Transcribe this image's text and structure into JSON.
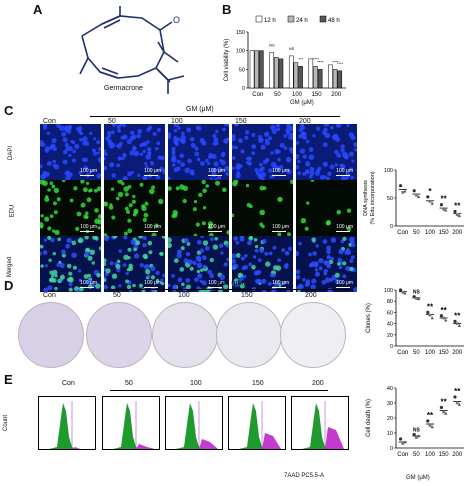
{
  "panels": {
    "A": "A",
    "B": "B",
    "C": "C",
    "D": "D",
    "E": "E"
  },
  "panel_a": {
    "compound": "Germacrone",
    "oxygen": "O"
  },
  "gm_label": "GM (μM)",
  "doses": [
    "Con",
    "50",
    "100",
    "150",
    "200"
  ],
  "panel_c": {
    "rows": [
      "DAPI",
      "EDU",
      "Merged"
    ],
    "scale_text": "100 μm"
  },
  "panel_e": {
    "y_axis": "Count",
    "x_axis": "7AAD PC5.5-A"
  },
  "chart_data": [
    {
      "type": "bar",
      "title": "",
      "ylabel": "Cell viability (%)",
      "xlabel": "GM (μM)",
      "categories": [
        "Con",
        "50",
        "100",
        "150",
        "200"
      ],
      "ylim": [
        0,
        150
      ],
      "yticks": [
        0,
        50,
        100,
        150
      ],
      "legend": "top",
      "series": [
        {
          "name": "12 h",
          "color": "#ffffff",
          "values": [
            100,
            95,
            86,
            78,
            62
          ]
        },
        {
          "name": "24 h",
          "color": "#b8b8b8",
          "values": [
            100,
            82,
            68,
            58,
            50
          ]
        },
        {
          "name": "48 h",
          "color": "#555555",
          "values": [
            100,
            78,
            58,
            50,
            46
          ]
        }
      ],
      "annotations": [
        "NS",
        "NS",
        "***",
        "****",
        "****",
        "****",
        "****"
      ]
    },
    {
      "type": "scatter",
      "ylabel": "DNA synthesis (% Edu incorporation)",
      "categories": [
        "Con",
        "50",
        "100",
        "150",
        "200"
      ],
      "ylim": [
        0,
        100
      ],
      "yticks": [
        0,
        50,
        100
      ],
      "means": [
        65,
        57,
        45,
        32,
        22
      ],
      "points": [
        [
          72,
          60,
          62
        ],
        [
          63,
          55,
          52
        ],
        [
          52,
          44,
          40
        ],
        [
          38,
          30,
          28
        ],
        [
          26,
          20,
          18
        ]
      ],
      "annotations": [
        "",
        "",
        "*",
        "**",
        "**"
      ]
    },
    {
      "type": "scatter",
      "ylabel": "Clones (%)",
      "categories": [
        "Con",
        "50",
        "100",
        "150",
        "200"
      ],
      "ylim": [
        0,
        100
      ],
      "yticks": [
        0,
        20,
        40,
        60,
        80,
        100
      ],
      "means": [
        97,
        86,
        56,
        50,
        40
      ],
      "points": [
        [
          100,
          96,
          94
        ],
        [
          88,
          85,
          84
        ],
        [
          60,
          55,
          50
        ],
        [
          54,
          50,
          46
        ],
        [
          44,
          40,
          36
        ]
      ],
      "annotations": [
        "",
        "NS",
        "**",
        "**",
        "**"
      ]
    },
    {
      "type": "scatter",
      "ylabel": "Cell death (%)",
      "xlabel": "GM (μM)",
      "categories": [
        "Con",
        "50",
        "100",
        "150",
        "200"
      ],
      "ylim": [
        0,
        40
      ],
      "yticks": [
        0,
        10,
        20,
        30,
        40
      ],
      "means": [
        4,
        8,
        16,
        25,
        31
      ],
      "points": [
        [
          6,
          3,
          4
        ],
        [
          9,
          7,
          8
        ],
        [
          18,
          15,
          14
        ],
        [
          27,
          24,
          23
        ],
        [
          34,
          30,
          29
        ]
      ],
      "annotations": [
        "",
        "NS",
        "**",
        "**",
        "**"
      ]
    }
  ]
}
